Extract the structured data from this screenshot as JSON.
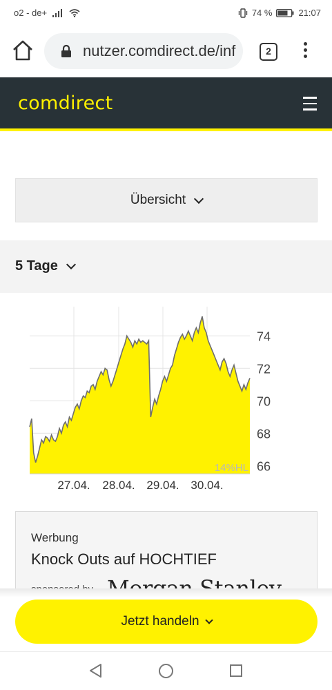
{
  "status": {
    "carrier": "o2 - de+",
    "battery": "74 %",
    "time": "21:07"
  },
  "browser": {
    "url": "nutzer.comdirect.de/inf",
    "tab_count": "2"
  },
  "header": {
    "logo": "comdirect"
  },
  "overview_dropdown": {
    "label": "Übersicht"
  },
  "period": {
    "label": "5 Tage"
  },
  "chart_data": {
    "type": "area",
    "x_tick_labels": [
      "27.04.",
      "28.04.",
      "29.04.",
      "30.04."
    ],
    "y_tick_labels": [
      "74",
      "72",
      "70",
      "68",
      "66"
    ],
    "ylim": [
      65.5,
      75.8
    ],
    "grid": true,
    "fill_color": "#fff200",
    "line_color": "#6e6e6e",
    "watermark": "14%HL",
    "values": [
      68.4,
      68.9,
      66.8,
      66.2,
      66.6,
      67.1,
      67.6,
      67.4,
      67.8,
      67.7,
      67.5,
      67.9,
      67.6,
      67.5,
      67.8,
      68.3,
      68.0,
      68.5,
      68.7,
      68.4,
      69.0,
      68.8,
      69.2,
      69.6,
      69.8,
      69.5,
      70.0,
      70.3,
      70.2,
      70.6,
      70.5,
      70.9,
      71.0,
      70.7,
      71.2,
      71.5,
      71.8,
      71.6,
      72.0,
      71.9,
      71.3,
      70.9,
      71.2,
      71.6,
      72.0,
      72.4,
      72.8,
      73.2,
      73.5,
      74.0,
      73.8,
      73.6,
      73.3,
      73.7,
      73.5,
      73.8,
      73.6,
      73.7,
      73.6,
      73.5,
      73.7,
      69.0,
      69.6,
      70.1,
      69.8,
      70.3,
      70.7,
      71.2,
      71.5,
      71.2,
      71.6,
      72.0,
      72.2,
      72.8,
      73.2,
      73.6,
      73.9,
      74.1,
      73.8,
      74.0,
      74.3,
      74.0,
      73.7,
      74.2,
      74.5,
      74.2,
      74.8,
      75.2,
      74.5,
      74.2,
      73.7,
      73.4,
      73.1,
      72.8,
      72.5,
      72.2,
      71.9,
      72.4,
      72.6,
      72.3,
      71.8,
      71.5,
      71.9,
      72.2,
      71.7,
      71.2,
      70.9,
      70.6,
      71.0,
      70.7,
      71.1,
      71.4
    ]
  },
  "ad": {
    "label": "Werbung",
    "title": "Knock Outs auf HOCHTIEF",
    "sponsored": "sponsored by",
    "brand": "Morgan Stanley"
  },
  "cta": {
    "label": "Jetzt handeln"
  }
}
